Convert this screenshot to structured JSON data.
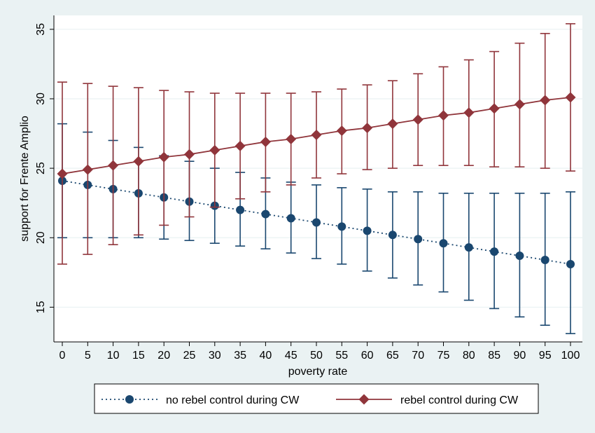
{
  "chart_data": {
    "type": "line",
    "xlabel": "poverty rate",
    "ylabel": "support for Frente Amplio",
    "x": [
      0,
      5,
      10,
      15,
      20,
      25,
      30,
      35,
      40,
      45,
      50,
      55,
      60,
      65,
      70,
      75,
      80,
      85,
      90,
      95,
      100
    ],
    "xlim": [
      0,
      100
    ],
    "ylim": [
      12.5,
      36
    ],
    "yticks": [
      15,
      20,
      25,
      30,
      35
    ],
    "grid": true,
    "legend_position": "bottom",
    "series": [
      {
        "name": "no rebel control during CW",
        "color": "#1a476f",
        "marker": "circle",
        "line_style": "dotted",
        "values": [
          24.1,
          23.8,
          23.5,
          23.2,
          22.9,
          22.6,
          22.3,
          22.0,
          21.7,
          21.4,
          21.1,
          20.8,
          20.5,
          20.2,
          19.9,
          19.6,
          19.3,
          19.0,
          18.7,
          18.4,
          18.1
        ],
        "lower": [
          20.0,
          20.0,
          20.0,
          20.0,
          19.9,
          19.8,
          19.6,
          19.4,
          19.2,
          18.9,
          18.5,
          18.1,
          17.6,
          17.1,
          16.6,
          16.1,
          15.5,
          14.9,
          14.3,
          13.7,
          13.1
        ],
        "upper": [
          28.2,
          27.6,
          27.0,
          26.5,
          25.9,
          25.5,
          25.0,
          24.7,
          24.3,
          24.0,
          23.8,
          23.6,
          23.5,
          23.3,
          23.3,
          23.2,
          23.2,
          23.2,
          23.2,
          23.2,
          23.3
        ]
      },
      {
        "name": "rebel control during CW",
        "color": "#90353b",
        "marker": "diamond",
        "line_style": "solid",
        "values": [
          24.6,
          24.9,
          25.2,
          25.5,
          25.8,
          26.0,
          26.3,
          26.6,
          26.9,
          27.1,
          27.4,
          27.7,
          27.9,
          28.2,
          28.5,
          28.8,
          29.0,
          29.3,
          29.6,
          29.9,
          30.1
        ],
        "lower": [
          18.1,
          18.8,
          19.5,
          20.2,
          20.9,
          21.5,
          22.2,
          22.8,
          23.3,
          23.8,
          24.3,
          24.6,
          24.9,
          25.0,
          25.2,
          25.2,
          25.2,
          25.1,
          25.1,
          25.0,
          24.8
        ],
        "upper": [
          31.2,
          31.1,
          30.9,
          30.8,
          30.6,
          30.5,
          30.4,
          30.4,
          30.4,
          30.4,
          30.5,
          30.7,
          31.0,
          31.3,
          31.8,
          32.3,
          32.8,
          33.4,
          34.0,
          34.7,
          35.4
        ]
      }
    ]
  }
}
